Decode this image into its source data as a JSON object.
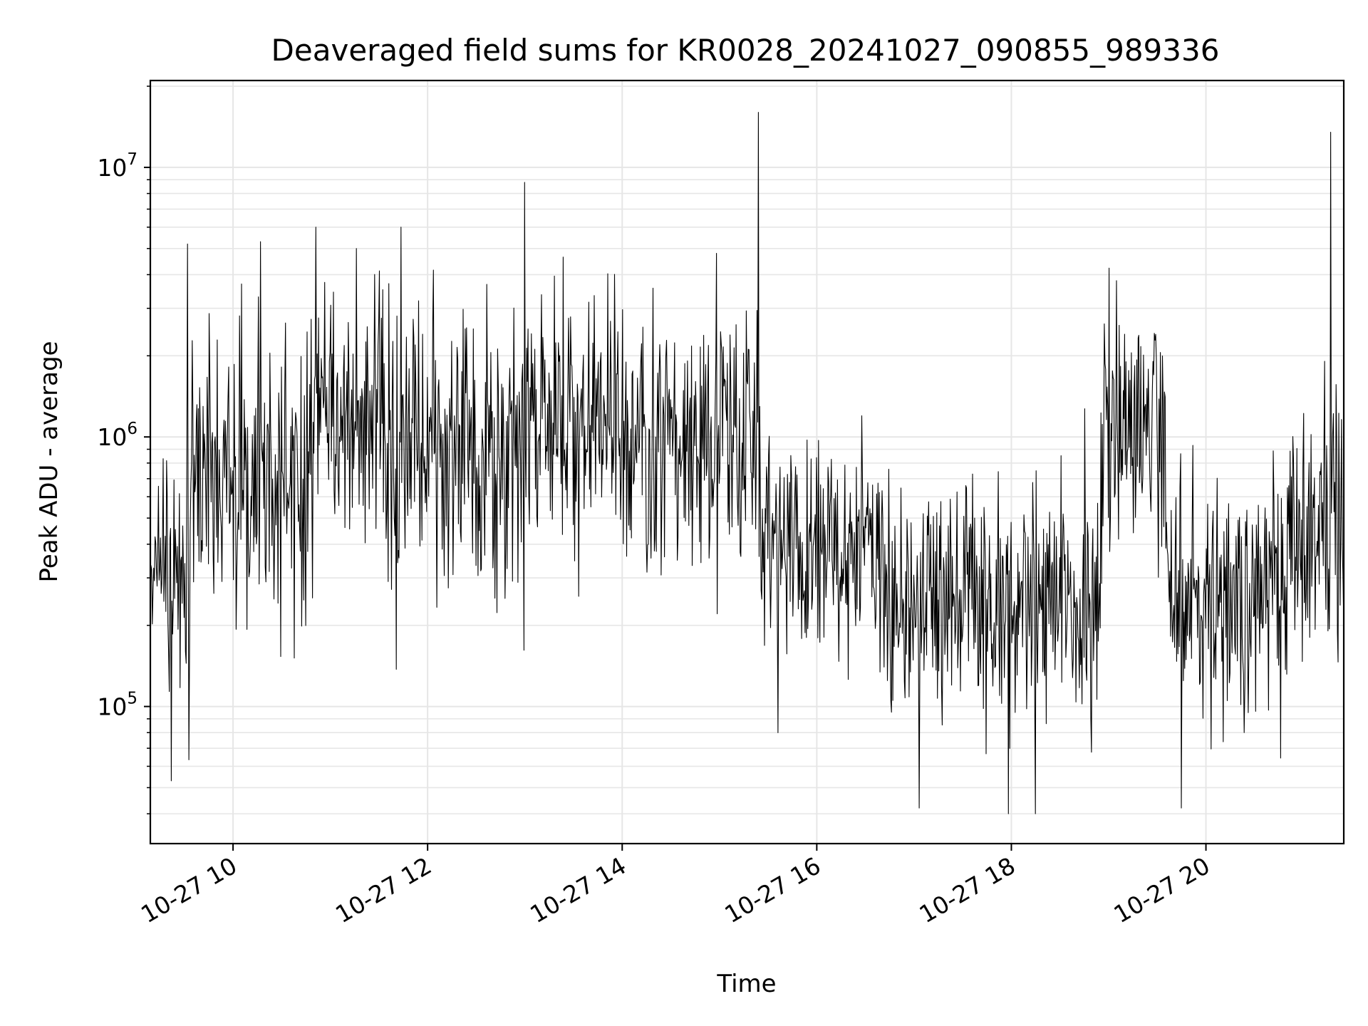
{
  "chart_data": {
    "type": "line",
    "title": "Deaveraged field sums for KR0028_20241027_090855_989336",
    "xlabel": "Time",
    "ylabel": "Peak ADU - average",
    "x_axis": {
      "scale": "time",
      "range": [
        "2024-10-27 09:09",
        "2024-10-27 21:25"
      ],
      "ticks": [
        "10-27 10",
        "10-27 12",
        "10-27 14",
        "10-27 16",
        "10-27 18",
        "10-27 20"
      ],
      "tick_values": [
        "2024-10-27 10:00",
        "2024-10-27 12:00",
        "2024-10-27 14:00",
        "2024-10-27 16:00",
        "2024-10-27 18:00",
        "2024-10-27 20:00"
      ],
      "tick_rotation_deg": 30
    },
    "y_axis": {
      "scale": "log",
      "range": [
        31000,
        21000000
      ],
      "ticks": [
        100000,
        1000000,
        10000000
      ],
      "tick_labels": [
        {
          "base": "10",
          "exp": "5"
        },
        {
          "base": "10",
          "exp": "6"
        },
        {
          "base": "10",
          "exp": "7"
        }
      ]
    },
    "grid": true,
    "line_color": "#000000",
    "grid_color": "#e6e6e6",
    "series": [
      {
        "name": "",
        "sampling": "approx. one point per 25 s; values estimated from the figure (median level and spread per time segment)",
        "levels": [
          {
            "start": "2024-10-27 09:09",
            "end": "2024-10-27 09:34",
            "median": 300000,
            "spread": 0.22
          },
          {
            "start": "2024-10-27 09:34",
            "end": "2024-10-27 10:45",
            "median": 700000,
            "spread": 0.28
          },
          {
            "start": "2024-10-27 10:45",
            "end": "2024-10-27 11:30",
            "median": 1200000,
            "spread": 0.28
          },
          {
            "start": "2024-10-27 11:30",
            "end": "2024-10-27 13:00",
            "median": 850000,
            "spread": 0.28
          },
          {
            "start": "2024-10-27 13:00",
            "end": "2024-10-27 14:00",
            "median": 1150000,
            "spread": 0.25
          },
          {
            "start": "2024-10-27 14:00",
            "end": "2024-10-27 15:25",
            "median": 950000,
            "spread": 0.25
          },
          {
            "start": "2024-10-27 15:25",
            "end": "2024-10-27 16:35",
            "median": 420000,
            "spread": 0.22
          },
          {
            "start": "2024-10-27 16:35",
            "end": "2024-10-27 18:55",
            "median": 250000,
            "spread": 0.24
          },
          {
            "start": "2024-10-27 18:55",
            "end": "2024-10-27 19:35",
            "median": 1100000,
            "spread": 0.22
          },
          {
            "start": "2024-10-27 19:35",
            "end": "2024-10-27 20:50",
            "median": 260000,
            "spread": 0.22
          },
          {
            "start": "2024-10-27 20:50",
            "end": "2024-10-27 21:25",
            "median": 480000,
            "spread": 0.24
          }
        ],
        "spikes": [
          {
            "time": "2024-10-27 13:00",
            "value": 8800000
          },
          {
            "time": "2024-10-27 15:24",
            "value": 16000000
          },
          {
            "time": "2024-10-27 21:17",
            "value": 13500000
          },
          {
            "time": "2024-10-27 09:32",
            "value": 5200000
          },
          {
            "time": "2024-10-27 10:17",
            "value": 5300000
          },
          {
            "time": "2024-10-27 11:16",
            "value": 5000000
          },
          {
            "time": "2024-10-27 14:58",
            "value": 4800000
          },
          {
            "time": "2024-10-27 19:05",
            "value": 3800000
          },
          {
            "time": "2024-10-27 09:22",
            "value": 53000
          },
          {
            "time": "2024-10-27 17:58",
            "value": 40000
          },
          {
            "time": "2024-10-27 18:15",
            "value": 40000
          },
          {
            "time": "2024-10-27 17:03",
            "value": 42000
          }
        ]
      }
    ]
  }
}
